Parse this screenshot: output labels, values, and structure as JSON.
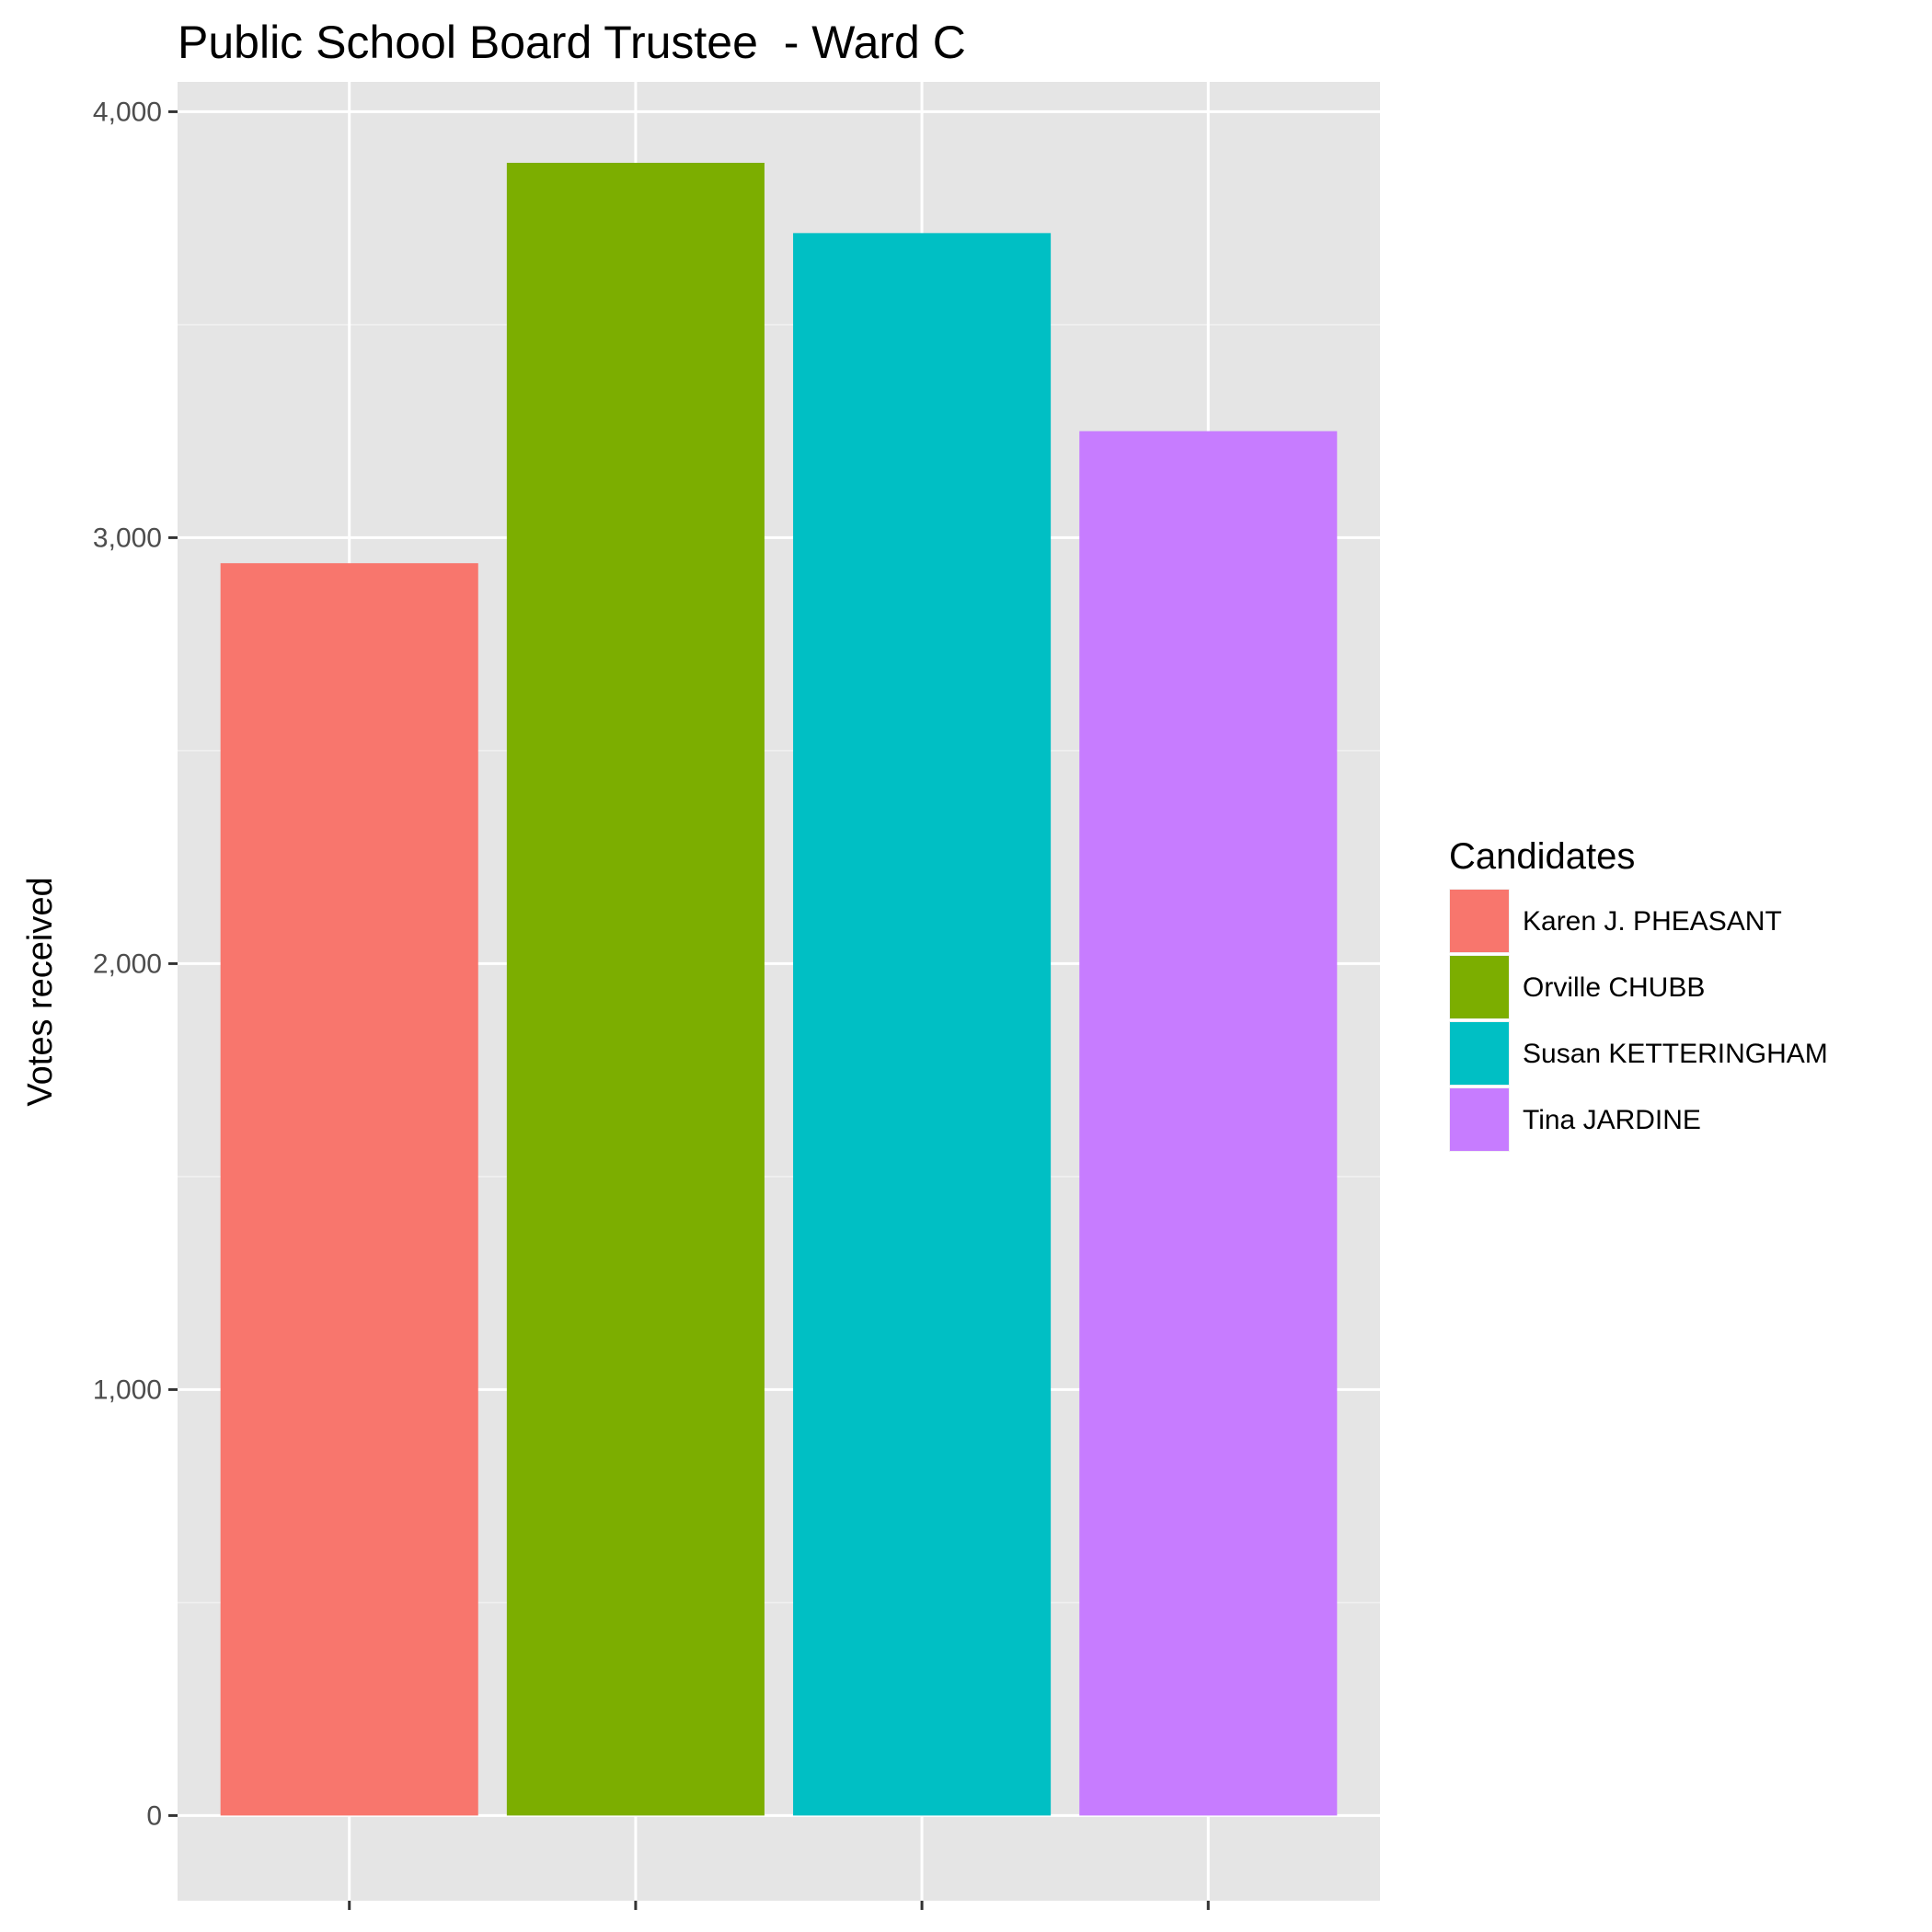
{
  "chart_data": {
    "type": "bar",
    "title": "Public School Board Trustee  - Ward C",
    "ylabel": "Votes received",
    "xlabel": "",
    "ylim": [
      -200,
      4070
    ],
    "yticks": [
      0,
      1000,
      2000,
      3000,
      4000
    ],
    "ytick_labels": [
      "0",
      "1,000",
      "2,000",
      "3,000",
      "4,000"
    ],
    "grid": true,
    "legend_title": "Candidates",
    "legend_position": "right",
    "categories": [
      "Karen J. PHEASANT",
      "Orville CHUBB",
      "Susan KETTERINGHAM",
      "Tina JARDINE"
    ],
    "values": [
      2940,
      3880,
      3715,
      3250
    ],
    "colors": [
      "#F8766D",
      "#7CAE00",
      "#00BFC4",
      "#C77CFF"
    ]
  }
}
